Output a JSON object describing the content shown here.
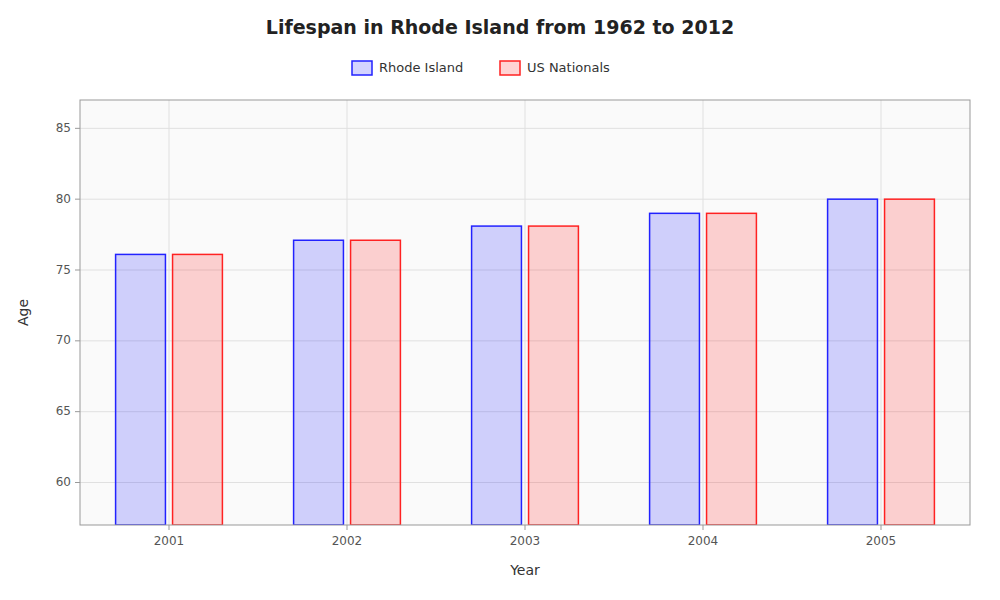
{
  "chart_data": {
    "type": "bar",
    "title": "Lifespan in Rhode Island from 1962 to 2012",
    "x_label": "Year",
    "y_label": "Age",
    "categories": [
      "2001",
      "2002",
      "2003",
      "2004",
      "2005"
    ],
    "series": [
      {
        "name": "Rhode Island",
        "color": "#2222ff",
        "values": [
          76.1,
          77.1,
          78.1,
          79.0,
          80.0
        ]
      },
      {
        "name": "US Nationals",
        "color": "#ff2222",
        "values": [
          76.1,
          77.1,
          78.1,
          79.0,
          80.0
        ]
      }
    ],
    "ylim": [
      57,
      87
    ],
    "yticks": [
      60,
      65,
      70,
      75,
      80,
      85
    ],
    "grid": true,
    "legend": "top"
  }
}
